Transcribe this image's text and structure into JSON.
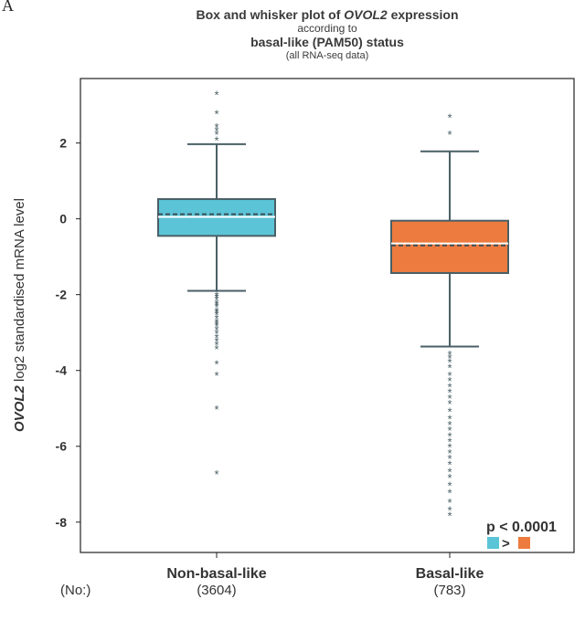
{
  "panel_letter": "A",
  "chart_data": {
    "type": "box",
    "title_prefix": "Box and whisker plot of ",
    "title_gene": "OVOL2",
    "title_suffix": " expression",
    "subtitle_line1": "according to",
    "subtitle_line2": "basal-like (PAM50) status",
    "subtitle_line3": "(all RNA-seq data)",
    "ylabel_gene": "OVOL2",
    "ylabel_rest": " log2 standardised mRNA level",
    "ylim": [
      -8.8,
      3.7
    ],
    "yticks": [
      2,
      0,
      -2,
      -4,
      -6,
      -8
    ],
    "ytick_labels": [
      "2",
      "0",
      "-2",
      "-4",
      "-6",
      "-8"
    ],
    "count_label": "(No:)",
    "groups": [
      {
        "name": "Non-basal-like",
        "count": "(3604)",
        "color": "#5bc4d6",
        "whisker_low": -1.9,
        "q1": -0.45,
        "median": 0.05,
        "mean": 0.12,
        "q3": 0.52,
        "whisker_high": 1.97,
        "outliers": [
          3.3,
          2.8,
          2.45,
          2.35,
          2.25,
          2.1,
          -2.0,
          -2.05,
          -2.1,
          -2.2,
          -2.25,
          -2.3,
          -2.4,
          -2.45,
          -2.5,
          -2.6,
          -2.7,
          -2.75,
          -2.8,
          -2.9,
          -3.0,
          -3.1,
          -3.2,
          -3.3,
          -3.4,
          -3.8,
          -4.1,
          -5.0,
          -6.7
        ]
      },
      {
        "name": "Basal-like",
        "count": "(783)",
        "color": "#ed7b3f",
        "whisker_low": -3.37,
        "q1": -1.43,
        "median": -0.65,
        "mean": -0.7,
        "q3": -0.05,
        "whisker_high": 1.78,
        "outliers": [
          2.7,
          2.25,
          -3.55,
          -3.65,
          -3.75,
          -3.9,
          -4.1,
          -4.25,
          -4.4,
          -4.55,
          -4.7,
          -4.85,
          -5.05,
          -5.25,
          -5.4,
          -5.55,
          -5.7,
          -5.85,
          -6.0,
          -6.15,
          -6.3,
          -6.45,
          -6.65,
          -6.8,
          -7.0,
          -7.2,
          -7.45,
          -7.65,
          -7.8
        ]
      }
    ],
    "pvalue_text": "p < 0.0001",
    "comparison_symbol": ">",
    "comparison_colors": [
      "#5bc4d6",
      "#ed7b3f"
    ]
  }
}
